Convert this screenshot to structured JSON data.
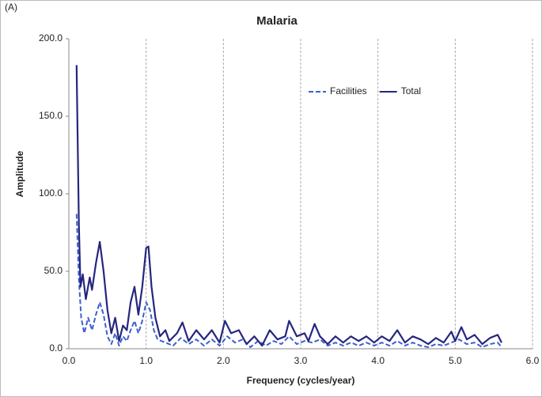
{
  "panel_label": "(A)",
  "chart_data": {
    "type": "line",
    "title": "Malaria",
    "x_label": "Frequency (cycles/year)",
    "y_label": "Amplitude",
    "xlim": [
      0,
      6
    ],
    "ylim": [
      0,
      200
    ],
    "xticks": [
      {
        "value": 0,
        "label": "0.0"
      },
      {
        "value": 1,
        "label": "1.0"
      },
      {
        "value": 2,
        "label": "2.0"
      },
      {
        "value": 3,
        "label": "3.0"
      },
      {
        "value": 4,
        "label": "4.0"
      },
      {
        "value": 5,
        "label": "5.0"
      },
      {
        "value": 6,
        "label": "6.0"
      }
    ],
    "yticks": [
      {
        "value": 0,
        "label": "0.0"
      },
      {
        "value": 50,
        "label": "50.0"
      },
      {
        "value": 100,
        "label": "100.0"
      },
      {
        "value": 150,
        "label": "150.0"
      },
      {
        "value": 200,
        "label": "200.0"
      }
    ],
    "grid": "x",
    "legend": "upper right",
    "series": [
      {
        "name": "Facilities",
        "color": "#3c5fd0",
        "dashed": true,
        "x": [
          0.1,
          0.13,
          0.16,
          0.2,
          0.25,
          0.3,
          0.35,
          0.4,
          0.45,
          0.5,
          0.55,
          0.6,
          0.65,
          0.7,
          0.75,
          0.8,
          0.85,
          0.9,
          0.95,
          1.0,
          1.05,
          1.1,
          1.15,
          1.25,
          1.35,
          1.45,
          1.55,
          1.65,
          1.75,
          1.85,
          1.95,
          2.05,
          2.15,
          2.25,
          2.35,
          2.45,
          2.55,
          2.65,
          2.75,
          2.85,
          2.95,
          3.05,
          3.15,
          3.25,
          3.35,
          3.45,
          3.55,
          3.65,
          3.75,
          3.85,
          3.95,
          4.05,
          4.15,
          4.25,
          4.35,
          4.45,
          4.55,
          4.65,
          4.75,
          4.85,
          4.95,
          5.05,
          5.15,
          5.25,
          5.35,
          5.45,
          5.55,
          5.6
        ],
        "values": [
          87,
          45,
          20,
          10,
          20,
          12,
          22,
          30,
          22,
          8,
          3,
          10,
          2,
          8,
          5,
          12,
          18,
          10,
          18,
          30,
          25,
          12,
          6,
          4,
          2,
          7,
          3,
          6,
          2,
          6,
          2,
          8,
          4,
          6,
          1,
          5,
          2,
          5,
          3,
          8,
          3,
          5,
          4,
          6,
          2,
          4,
          2,
          4,
          2,
          4,
          2,
          4,
          2,
          5,
          2,
          4,
          2,
          1,
          3,
          2,
          4,
          6,
          3,
          4,
          1,
          3,
          4,
          1
        ]
      },
      {
        "name": "Total",
        "color": "#25267e",
        "dashed": false,
        "x": [
          0.1,
          0.13,
          0.15,
          0.18,
          0.22,
          0.27,
          0.3,
          0.35,
          0.4,
          0.45,
          0.5,
          0.55,
          0.6,
          0.65,
          0.7,
          0.75,
          0.8,
          0.85,
          0.9,
          0.95,
          1.0,
          1.03,
          1.07,
          1.12,
          1.18,
          1.25,
          1.3,
          1.4,
          1.47,
          1.55,
          1.65,
          1.75,
          1.85,
          1.95,
          2.02,
          2.1,
          2.2,
          2.3,
          2.4,
          2.5,
          2.6,
          2.7,
          2.8,
          2.85,
          2.95,
          3.05,
          3.1,
          3.18,
          3.25,
          3.35,
          3.45,
          3.55,
          3.65,
          3.75,
          3.85,
          3.95,
          4.05,
          4.15,
          4.25,
          4.35,
          4.45,
          4.55,
          4.65,
          4.75,
          4.85,
          4.95,
          5.0,
          5.08,
          5.15,
          5.25,
          5.35,
          5.45,
          5.55,
          5.6
        ],
        "values": [
          183,
          80,
          40,
          48,
          32,
          46,
          38,
          55,
          69,
          50,
          25,
          10,
          20,
          5,
          15,
          12,
          30,
          40,
          22,
          40,
          65,
          66,
          40,
          20,
          8,
          12,
          5,
          10,
          17,
          5,
          12,
          6,
          12,
          4,
          18,
          10,
          12,
          3,
          8,
          2,
          12,
          6,
          8,
          18,
          8,
          10,
          5,
          16,
          8,
          3,
          8,
          4,
          8,
          5,
          8,
          4,
          8,
          5,
          12,
          4,
          8,
          6,
          3,
          7,
          4,
          11,
          5,
          14,
          6,
          9,
          3,
          7,
          9,
          4
        ]
      }
    ]
  }
}
